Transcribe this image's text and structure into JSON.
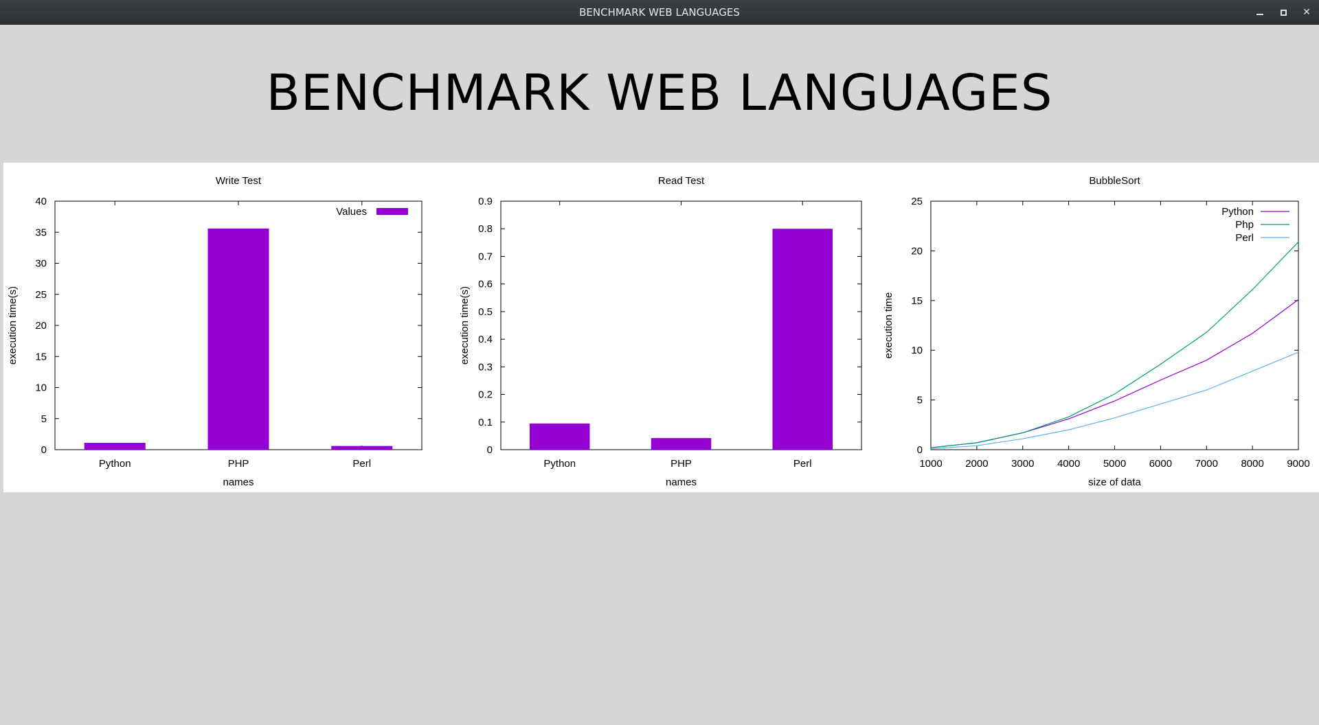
{
  "window": {
    "title": "BENCHMARK WEB LANGUAGES"
  },
  "heading": "BENCHMARK WEB LANGUAGES",
  "colors": {
    "bar": "#9400d3",
    "python": "#9400d3",
    "php": "#009e73",
    "perl": "#56b4e9"
  },
  "chart_data": [
    {
      "type": "bar",
      "title": "Write Test",
      "xlabel": "names",
      "ylabel": "execution time(s)",
      "categories": [
        "Python",
        "PHP",
        "Perl"
      ],
      "series": [
        {
          "name": "Values",
          "values": [
            1.1,
            35.6,
            0.6
          ]
        }
      ],
      "ylim": [
        0,
        40
      ],
      "yticks": [
        "0",
        "5",
        "10",
        "15",
        "20",
        "25",
        "30",
        "35",
        "40"
      ],
      "legend": "top-right"
    },
    {
      "type": "bar",
      "title": "Read Test",
      "xlabel": "names",
      "ylabel": "execution time(s)",
      "categories": [
        "Python",
        "PHP",
        "Perl"
      ],
      "series": [
        {
          "values": [
            0.095,
            0.042,
            0.8
          ]
        }
      ],
      "ylim": [
        0,
        0.9
      ],
      "yticks": [
        "0",
        "0.1",
        "0.2",
        "0.3",
        "0.4",
        "0.5",
        "0.6",
        "0.7",
        "0.8",
        "0.9"
      ]
    },
    {
      "type": "line",
      "title": "BubbleSort",
      "xlabel": "size of data",
      "ylabel": "execution time",
      "x": [
        1000,
        2000,
        3000,
        4000,
        5000,
        6000,
        7000,
        8000,
        9000
      ],
      "xlim": [
        1000,
        9000
      ],
      "ylim": [
        0,
        25
      ],
      "xticks": [
        "1000",
        "2000",
        "3000",
        "4000",
        "5000",
        "6000",
        "7000",
        "8000",
        "9000"
      ],
      "yticks": [
        "0",
        "5",
        "10",
        "15",
        "20",
        "25"
      ],
      "legend": "top-right",
      "series": [
        {
          "name": "Python",
          "values": [
            0.2,
            0.7,
            1.7,
            3.1,
            4.9,
            7.0,
            9.0,
            11.7,
            15.1
          ]
        },
        {
          "name": "Php",
          "values": [
            0.2,
            0.7,
            1.7,
            3.3,
            5.6,
            8.6,
            11.8,
            16.1,
            20.9
          ]
        },
        {
          "name": "Perl",
          "values": [
            0.1,
            0.4,
            1.1,
            2.0,
            3.2,
            4.6,
            6.0,
            7.9,
            9.8
          ]
        }
      ]
    }
  ]
}
